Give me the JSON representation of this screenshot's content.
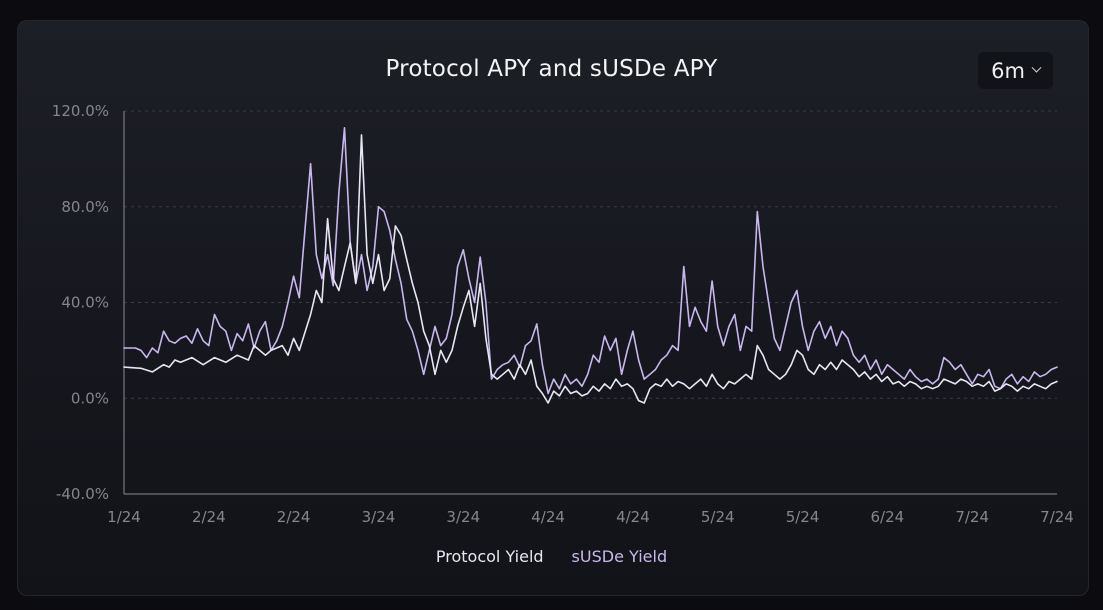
{
  "header": {
    "title": "Protocol APY and sUSDe APY",
    "range_value": "6m"
  },
  "chart_data": {
    "type": "line",
    "title": "Protocol APY and sUSDe APY",
    "ylim": [
      -40,
      120
    ],
    "y_ticks": [
      "120.0%",
      "80.0%",
      "40.0%",
      "0.0%",
      "-40.0%"
    ],
    "y_tick_values": [
      120,
      80,
      40,
      0,
      -40
    ],
    "x_ticks": [
      "1/24",
      "2/24",
      "2/24",
      "3/24",
      "3/24",
      "4/24",
      "4/24",
      "5/24",
      "5/24",
      "6/24",
      "7/24",
      "7/24"
    ],
    "x_tick_values": [
      0,
      15,
      30,
      45,
      60,
      75,
      90,
      105,
      120,
      135,
      150,
      165
    ],
    "grid": "horizontal-dashed",
    "legend_position": "bottom",
    "series": [
      {
        "name": "Protocol Yield",
        "color": "#e8e6f4",
        "points": [
          [
            0,
            13
          ],
          [
            3,
            12.5
          ],
          [
            5,
            11
          ],
          [
            7,
            14
          ],
          [
            8,
            13
          ],
          [
            9,
            16
          ],
          [
            10,
            15
          ],
          [
            12,
            17
          ],
          [
            14,
            14
          ],
          [
            16,
            17
          ],
          [
            18,
            15
          ],
          [
            20,
            18
          ],
          [
            22,
            16
          ],
          [
            23,
            22
          ],
          [
            25,
            18
          ],
          [
            26,
            20
          ],
          [
            28,
            22
          ],
          [
            29,
            18
          ],
          [
            30,
            25
          ],
          [
            31,
            20
          ],
          [
            33,
            35
          ],
          [
            34,
            45
          ],
          [
            35,
            40
          ],
          [
            36,
            75
          ],
          [
            37,
            50
          ],
          [
            38,
            45
          ],
          [
            39,
            55
          ],
          [
            40,
            65
          ],
          [
            41,
            48
          ],
          [
            42,
            110
          ],
          [
            43,
            60
          ],
          [
            44,
            48
          ],
          [
            45,
            60
          ],
          [
            46,
            45
          ],
          [
            47,
            50
          ],
          [
            48,
            72
          ],
          [
            49,
            68
          ],
          [
            50,
            58
          ],
          [
            51,
            48
          ],
          [
            52,
            40
          ],
          [
            53,
            28
          ],
          [
            54,
            22
          ],
          [
            55,
            10
          ],
          [
            56,
            20
          ],
          [
            57,
            15
          ],
          [
            58,
            20
          ],
          [
            59,
            30
          ],
          [
            60,
            38
          ],
          [
            61,
            45
          ],
          [
            62,
            30
          ],
          [
            63,
            48
          ],
          [
            64,
            25
          ],
          [
            65,
            10
          ],
          [
            66,
            8
          ],
          [
            67,
            10
          ],
          [
            68,
            12
          ],
          [
            69,
            8
          ],
          [
            70,
            14
          ],
          [
            71,
            10
          ],
          [
            72,
            16
          ],
          [
            73,
            5
          ],
          [
            74,
            2
          ],
          [
            75,
            -2
          ],
          [
            76,
            3
          ],
          [
            77,
            1
          ],
          [
            78,
            5
          ],
          [
            79,
            2
          ],
          [
            80,
            3
          ],
          [
            81,
            1
          ],
          [
            82,
            2
          ],
          [
            83,
            5
          ],
          [
            84,
            3
          ],
          [
            85,
            6
          ],
          [
            86,
            4
          ],
          [
            87,
            8
          ],
          [
            88,
            5
          ],
          [
            89,
            6
          ],
          [
            90,
            4
          ],
          [
            91,
            -1
          ],
          [
            92,
            -2
          ],
          [
            93,
            4
          ],
          [
            94,
            6
          ],
          [
            95,
            5
          ],
          [
            96,
            8
          ],
          [
            97,
            5
          ],
          [
            98,
            7
          ],
          [
            99,
            6
          ],
          [
            100,
            4
          ],
          [
            101,
            6
          ],
          [
            102,
            8
          ],
          [
            103,
            5
          ],
          [
            104,
            10
          ],
          [
            105,
            6
          ],
          [
            106,
            4
          ],
          [
            107,
            7
          ],
          [
            108,
            6
          ],
          [
            109,
            8
          ],
          [
            110,
            10
          ],
          [
            111,
            8
          ],
          [
            112,
            22
          ],
          [
            113,
            18
          ],
          [
            114,
            12
          ],
          [
            115,
            10
          ],
          [
            116,
            8
          ],
          [
            117,
            10
          ],
          [
            118,
            14
          ],
          [
            119,
            20
          ],
          [
            120,
            18
          ],
          [
            121,
            12
          ],
          [
            122,
            10
          ],
          [
            123,
            14
          ],
          [
            124,
            12
          ],
          [
            125,
            15
          ],
          [
            126,
            12
          ],
          [
            127,
            16
          ],
          [
            128,
            14
          ],
          [
            129,
            12
          ],
          [
            130,
            9
          ],
          [
            131,
            11
          ],
          [
            132,
            8
          ],
          [
            133,
            10
          ],
          [
            134,
            7
          ],
          [
            135,
            9
          ],
          [
            136,
            6
          ],
          [
            137,
            7
          ],
          [
            138,
            5
          ],
          [
            139,
            7
          ],
          [
            140,
            6
          ],
          [
            141,
            4
          ],
          [
            142,
            5
          ],
          [
            143,
            4
          ],
          [
            144,
            5
          ],
          [
            145,
            8
          ],
          [
            146,
            7
          ],
          [
            147,
            6
          ],
          [
            148,
            8
          ],
          [
            149,
            7
          ],
          [
            150,
            5
          ],
          [
            151,
            6
          ],
          [
            152,
            5
          ],
          [
            153,
            7
          ],
          [
            154,
            3
          ],
          [
            155,
            4
          ],
          [
            156,
            6
          ],
          [
            157,
            5
          ],
          [
            158,
            3
          ],
          [
            159,
            5
          ],
          [
            160,
            4
          ],
          [
            161,
            6
          ],
          [
            162,
            5
          ],
          [
            163,
            4
          ],
          [
            164,
            6
          ],
          [
            165,
            7
          ]
        ]
      },
      {
        "name": "sUSDe Yield",
        "color": "#c9b6ee",
        "points": [
          [
            0,
            21
          ],
          [
            2,
            21
          ],
          [
            3,
            20
          ],
          [
            4,
            17
          ],
          [
            5,
            21
          ],
          [
            6,
            19
          ],
          [
            7,
            28
          ],
          [
            8,
            24
          ],
          [
            9,
            23
          ],
          [
            10,
            25
          ],
          [
            11,
            26
          ],
          [
            12,
            23
          ],
          [
            13,
            29
          ],
          [
            14,
            24
          ],
          [
            15,
            22
          ],
          [
            16,
            35
          ],
          [
            17,
            30
          ],
          [
            18,
            28
          ],
          [
            19,
            20
          ],
          [
            20,
            27
          ],
          [
            21,
            24
          ],
          [
            22,
            31
          ],
          [
            23,
            21
          ],
          [
            24,
            28
          ],
          [
            25,
            32
          ],
          [
            26,
            20
          ],
          [
            27,
            24
          ],
          [
            28,
            30
          ],
          [
            29,
            40
          ],
          [
            30,
            51
          ],
          [
            31,
            42
          ],
          [
            32,
            70
          ],
          [
            33,
            98
          ],
          [
            34,
            60
          ],
          [
            35,
            50
          ],
          [
            36,
            60
          ],
          [
            37,
            47
          ],
          [
            38,
            86
          ],
          [
            39,
            113
          ],
          [
            40,
            65
          ],
          [
            41,
            48
          ],
          [
            42,
            60
          ],
          [
            43,
            45
          ],
          [
            44,
            55
          ],
          [
            45,
            80
          ],
          [
            46,
            78
          ],
          [
            47,
            70
          ],
          [
            48,
            58
          ],
          [
            49,
            48
          ],
          [
            50,
            33
          ],
          [
            51,
            28
          ],
          [
            52,
            20
          ],
          [
            53,
            10
          ],
          [
            54,
            20
          ],
          [
            55,
            30
          ],
          [
            56,
            22
          ],
          [
            57,
            25
          ],
          [
            58,
            35
          ],
          [
            59,
            55
          ],
          [
            60,
            62
          ],
          [
            61,
            50
          ],
          [
            62,
            40
          ],
          [
            63,
            59
          ],
          [
            64,
            40
          ],
          [
            65,
            8
          ],
          [
            66,
            12
          ],
          [
            67,
            14
          ],
          [
            68,
            15
          ],
          [
            69,
            18
          ],
          [
            70,
            13
          ],
          [
            71,
            22
          ],
          [
            72,
            24
          ],
          [
            73,
            31
          ],
          [
            74,
            14
          ],
          [
            75,
            2
          ],
          [
            76,
            8
          ],
          [
            77,
            4
          ],
          [
            78,
            10
          ],
          [
            79,
            6
          ],
          [
            80,
            8
          ],
          [
            81,
            5
          ],
          [
            82,
            10
          ],
          [
            83,
            18
          ],
          [
            84,
            15
          ],
          [
            85,
            26
          ],
          [
            86,
            20
          ],
          [
            87,
            25
          ],
          [
            88,
            10
          ],
          [
            89,
            20
          ],
          [
            90,
            28
          ],
          [
            91,
            16
          ],
          [
            92,
            8
          ],
          [
            93,
            10
          ],
          [
            94,
            12
          ],
          [
            95,
            16
          ],
          [
            96,
            18
          ],
          [
            97,
            22
          ],
          [
            98,
            20
          ],
          [
            99,
            55
          ],
          [
            100,
            30
          ],
          [
            101,
            38
          ],
          [
            102,
            32
          ],
          [
            103,
            28
          ],
          [
            104,
            49
          ],
          [
            105,
            30
          ],
          [
            106,
            22
          ],
          [
            107,
            30
          ],
          [
            108,
            35
          ],
          [
            109,
            20
          ],
          [
            110,
            30
          ],
          [
            111,
            28
          ],
          [
            112,
            78
          ],
          [
            113,
            55
          ],
          [
            114,
            40
          ],
          [
            115,
            25
          ],
          [
            116,
            20
          ],
          [
            117,
            30
          ],
          [
            118,
            40
          ],
          [
            119,
            45
          ],
          [
            120,
            30
          ],
          [
            121,
            20
          ],
          [
            122,
            28
          ],
          [
            123,
            32
          ],
          [
            124,
            25
          ],
          [
            125,
            30
          ],
          [
            126,
            22
          ],
          [
            127,
            28
          ],
          [
            128,
            25
          ],
          [
            129,
            18
          ],
          [
            130,
            15
          ],
          [
            131,
            18
          ],
          [
            132,
            12
          ],
          [
            133,
            16
          ],
          [
            134,
            10
          ],
          [
            135,
            14
          ],
          [
            136,
            12
          ],
          [
            137,
            10
          ],
          [
            138,
            8
          ],
          [
            139,
            12
          ],
          [
            140,
            9
          ],
          [
            141,
            7
          ],
          [
            142,
            8
          ],
          [
            143,
            6
          ],
          [
            144,
            8
          ],
          [
            145,
            17
          ],
          [
            146,
            15
          ],
          [
            147,
            12
          ],
          [
            148,
            14
          ],
          [
            149,
            10
          ],
          [
            150,
            6
          ],
          [
            151,
            10
          ],
          [
            152,
            9
          ],
          [
            153,
            12
          ],
          [
            154,
            5
          ],
          [
            155,
            4
          ],
          [
            156,
            8
          ],
          [
            157,
            10
          ],
          [
            158,
            6
          ],
          [
            159,
            9
          ],
          [
            160,
            7
          ],
          [
            161,
            11
          ],
          [
            162,
            9
          ],
          [
            163,
            10
          ],
          [
            164,
            12
          ],
          [
            165,
            13
          ]
        ]
      }
    ]
  },
  "legend": {
    "items": [
      "Protocol Yield",
      "sUSDe Yield"
    ]
  },
  "colors": {
    "axis": "#8a8b93",
    "tick_label": "#84858d",
    "grid": "#3a3b44",
    "protocol": "#e8e6f4",
    "susde": "#c9b6ee"
  }
}
